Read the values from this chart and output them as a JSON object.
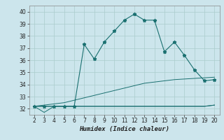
{
  "xlabel": "Humidex (Indice chaleur)",
  "x": [
    2,
    3,
    4,
    5,
    6,
    7,
    8,
    9,
    10,
    11,
    12,
    13,
    14,
    15,
    16,
    17,
    18,
    19,
    20
  ],
  "line1": [
    32.2,
    32.2,
    32.2,
    32.2,
    32.2,
    32.2,
    32.2,
    32.2,
    32.2,
    32.2,
    32.2,
    32.2,
    32.2,
    32.2,
    32.2,
    32.2,
    32.2,
    32.2,
    32.3
  ],
  "line2": [
    32.2,
    31.7,
    32.2,
    32.2,
    32.2,
    32.2,
    32.2,
    32.2,
    32.2,
    32.2,
    32.2,
    32.2,
    32.2,
    32.2,
    32.2,
    32.2,
    32.2,
    32.2,
    32.3
  ],
  "line3": [
    32.2,
    32.3,
    32.4,
    32.5,
    32.7,
    32.9,
    33.1,
    33.3,
    33.5,
    33.7,
    33.9,
    34.1,
    34.2,
    34.3,
    34.4,
    34.45,
    34.5,
    34.55,
    34.6
  ],
  "line4": [
    32.2,
    32.2,
    32.2,
    32.2,
    32.2,
    37.3,
    36.1,
    37.5,
    38.4,
    39.3,
    39.8,
    39.3,
    39.3,
    36.7,
    37.5,
    36.4,
    35.2,
    34.3,
    34.4
  ],
  "bg_color": "#cce5ec",
  "grid_color": "#aacccc",
  "line_color": "#1a7070",
  "ylim": [
    31.5,
    40.5
  ],
  "yticks": [
    32,
    33,
    34,
    35,
    36,
    37,
    38,
    39,
    40
  ],
  "xticks": [
    2,
    3,
    4,
    5,
    6,
    7,
    8,
    9,
    10,
    11,
    12,
    13,
    14,
    15,
    16,
    17,
    18,
    19,
    20
  ],
  "tick_fontsize": 5.5,
  "xlabel_fontsize": 6.5
}
